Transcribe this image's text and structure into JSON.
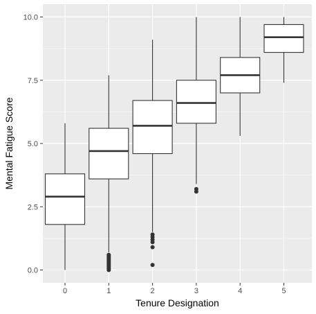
{
  "chart_data": {
    "type": "boxplot",
    "xlabel": "Tenure Designation",
    "ylabel": "Mental Fatigue Score",
    "categories": [
      "0",
      "1",
      "2",
      "3",
      "4",
      "5"
    ],
    "ylim": [
      -0.5,
      10.4
    ],
    "yticks": [
      0,
      2.5,
      5,
      7.5,
      10
    ],
    "ytick_labels": [
      "0.0",
      "2.5",
      "5.0",
      "7.5",
      "10.0"
    ],
    "grid": true,
    "boxes": [
      {
        "category": "0",
        "whisker_low": 0.0,
        "q1": 1.8,
        "median": 2.9,
        "q3": 3.8,
        "whisker_high": 5.8,
        "outliers": []
      },
      {
        "category": "1",
        "whisker_low": 0.7,
        "q1": 3.6,
        "median": 4.7,
        "q3": 5.6,
        "whisker_high": 7.7,
        "outliers": [
          0.0,
          0.05,
          0.1,
          0.15,
          0.2,
          0.25,
          0.3,
          0.35,
          0.4,
          0.45,
          0.5,
          0.55,
          0.6
        ]
      },
      {
        "category": "2",
        "whisker_low": 1.5,
        "q1": 4.6,
        "median": 5.7,
        "q3": 6.7,
        "whisker_high": 9.1,
        "outliers": [
          0.2,
          0.9,
          1.1,
          1.2,
          1.3,
          1.4
        ]
      },
      {
        "category": "3",
        "whisker_low": 3.4,
        "q1": 5.8,
        "median": 6.6,
        "q3": 7.5,
        "whisker_high": 10.0,
        "outliers": [
          3.1,
          3.2
        ]
      },
      {
        "category": "4",
        "whisker_low": 5.3,
        "q1": 7.0,
        "median": 7.7,
        "q3": 8.4,
        "whisker_high": 10.0,
        "outliers": []
      },
      {
        "category": "5",
        "whisker_low": 7.4,
        "q1": 8.6,
        "median": 9.2,
        "q3": 9.7,
        "whisker_high": 10.0,
        "outliers": []
      }
    ],
    "colors": {
      "panel": "#ebebeb",
      "grid": "#ffffff",
      "box_fill": "#ffffff",
      "box_line": "#333333",
      "tick": "#333333"
    }
  }
}
